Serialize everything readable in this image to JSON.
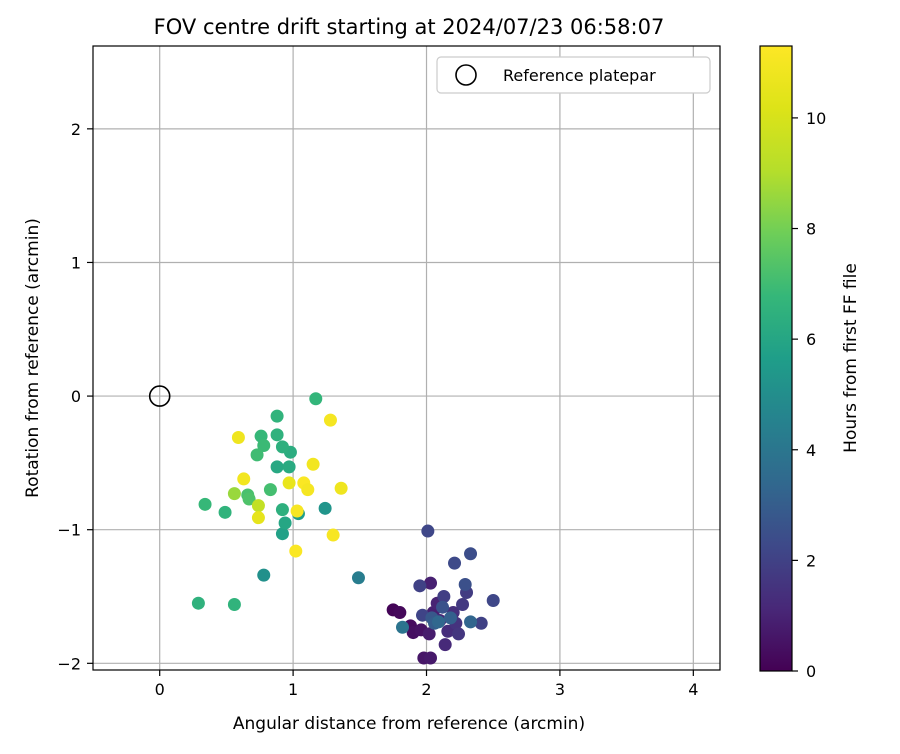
{
  "chart_data": {
    "type": "scatter",
    "title": "FOV centre drift starting at 2024/07/23 06:58:07",
    "xlabel": "Angular distance from reference (arcmin)",
    "ylabel": "Rotation from reference (arcmin)",
    "xlim": [
      -0.5,
      4.2
    ],
    "ylim": [
      -2.05,
      2.62
    ],
    "xticks": [
      0,
      1,
      2,
      3,
      4
    ],
    "xtick_labels": [
      "0",
      "1",
      "2",
      "3",
      "4"
    ],
    "yticks": [
      -2,
      -1,
      0,
      1,
      2
    ],
    "ytick_labels": [
      "−2",
      "−1",
      "0",
      "1",
      "2"
    ],
    "grid": true,
    "legend": {
      "placement": "top-right",
      "entries": [
        "Reference platepar"
      ]
    },
    "reference_point": {
      "x": 0,
      "y": 0
    },
    "colorbar": {
      "label": "Hours from first FF file",
      "colormap": "viridis",
      "range": [
        0,
        11.3
      ],
      "ticks": [
        0,
        2,
        4,
        6,
        8,
        10
      ],
      "tick_labels": [
        "0",
        "2",
        "4",
        "6",
        "8",
        "10"
      ]
    },
    "points": [
      {
        "x": 1.75,
        "y": -1.6,
        "h": 0.1
      },
      {
        "x": 1.8,
        "y": -1.62,
        "h": 0.2
      },
      {
        "x": 1.88,
        "y": -1.72,
        "h": 0.3
      },
      {
        "x": 1.9,
        "y": -1.77,
        "h": 0.4
      },
      {
        "x": 1.96,
        "y": -1.75,
        "h": 0.5
      },
      {
        "x": 1.98,
        "y": -1.96,
        "h": 0.6
      },
      {
        "x": 2.03,
        "y": -1.96,
        "h": 0.7
      },
      {
        "x": 2.02,
        "y": -1.78,
        "h": 0.8
      },
      {
        "x": 2.05,
        "y": -1.62,
        "h": 0.9
      },
      {
        "x": 2.08,
        "y": -1.55,
        "h": 1.0
      },
      {
        "x": 2.1,
        "y": -1.68,
        "h": 1.1
      },
      {
        "x": 2.14,
        "y": -1.86,
        "h": 1.2
      },
      {
        "x": 2.16,
        "y": -1.76,
        "h": 1.3
      },
      {
        "x": 2.03,
        "y": -1.4,
        "h": 0.9
      },
      {
        "x": 2.2,
        "y": -1.62,
        "h": 1.4
      },
      {
        "x": 2.22,
        "y": -1.7,
        "h": 1.5
      },
      {
        "x": 2.24,
        "y": -1.78,
        "h": 1.6
      },
      {
        "x": 2.27,
        "y": -1.56,
        "h": 1.7
      },
      {
        "x": 2.3,
        "y": -1.47,
        "h": 1.8
      },
      {
        "x": 2.13,
        "y": -1.5,
        "h": 1.9
      },
      {
        "x": 1.95,
        "y": -1.42,
        "h": 2.0
      },
      {
        "x": 1.97,
        "y": -1.64,
        "h": 2.1
      },
      {
        "x": 2.01,
        "y": -1.01,
        "h": 2.2
      },
      {
        "x": 2.21,
        "y": -1.25,
        "h": 2.3
      },
      {
        "x": 2.33,
        "y": -1.18,
        "h": 2.4
      },
      {
        "x": 2.29,
        "y": -1.41,
        "h": 2.5
      },
      {
        "x": 2.5,
        "y": -1.53,
        "h": 2.2
      },
      {
        "x": 2.41,
        "y": -1.7,
        "h": 2.0
      },
      {
        "x": 2.12,
        "y": -1.58,
        "h": 2.6
      },
      {
        "x": 2.04,
        "y": -1.66,
        "h": 2.8
      },
      {
        "x": 2.06,
        "y": -1.7,
        "h": 3.0
      },
      {
        "x": 2.18,
        "y": -1.66,
        "h": 3.1
      },
      {
        "x": 2.33,
        "y": -1.69,
        "h": 3.3
      },
      {
        "x": 2.09,
        "y": -1.69,
        "h": 3.4
      },
      {
        "x": 1.82,
        "y": -1.73,
        "h": 3.9
      },
      {
        "x": 1.49,
        "y": -1.36,
        "h": 4.3
      },
      {
        "x": 0.78,
        "y": -1.34,
        "h": 5.1
      },
      {
        "x": 1.24,
        "y": -0.84,
        "h": 5.3
      },
      {
        "x": 1.04,
        "y": -0.88,
        "h": 5.6
      },
      {
        "x": 0.92,
        "y": -1.03,
        "h": 5.8
      },
      {
        "x": 0.94,
        "y": -0.95,
        "h": 6.0
      },
      {
        "x": 0.88,
        "y": -0.53,
        "h": 6.1
      },
      {
        "x": 0.97,
        "y": -0.53,
        "h": 6.2
      },
      {
        "x": 0.98,
        "y": -0.42,
        "h": 6.3
      },
      {
        "x": 0.92,
        "y": -0.38,
        "h": 6.4
      },
      {
        "x": 0.88,
        "y": -0.29,
        "h": 6.5
      },
      {
        "x": 0.88,
        "y": -0.15,
        "h": 6.6
      },
      {
        "x": 1.17,
        "y": -0.02,
        "h": 6.7
      },
      {
        "x": 0.76,
        "y": -0.3,
        "h": 6.8
      },
      {
        "x": 0.78,
        "y": -0.37,
        "h": 6.9
      },
      {
        "x": 0.73,
        "y": -0.44,
        "h": 7.0
      },
      {
        "x": 0.83,
        "y": -0.7,
        "h": 7.1
      },
      {
        "x": 0.66,
        "y": -0.74,
        "h": 7.2
      },
      {
        "x": 0.67,
        "y": -0.77,
        "h": 7.3
      },
      {
        "x": 0.92,
        "y": -0.85,
        "h": 6.4
      },
      {
        "x": 0.34,
        "y": -0.81,
        "h": 6.8
      },
      {
        "x": 0.49,
        "y": -0.87,
        "h": 6.6
      },
      {
        "x": 0.29,
        "y": -1.55,
        "h": 6.5
      },
      {
        "x": 0.56,
        "y": -1.56,
        "h": 6.6
      },
      {
        "x": 0.56,
        "y": -0.73,
        "h": 8.6
      },
      {
        "x": 0.74,
        "y": -0.82,
        "h": 9.4
      },
      {
        "x": 0.74,
        "y": -0.91,
        "h": 10.5
      },
      {
        "x": 0.59,
        "y": -0.31,
        "h": 10.8
      },
      {
        "x": 0.63,
        "y": -0.62,
        "h": 10.9
      },
      {
        "x": 0.97,
        "y": -0.65,
        "h": 10.6
      },
      {
        "x": 1.03,
        "y": -0.86,
        "h": 11.1
      },
      {
        "x": 1.08,
        "y": -0.65,
        "h": 11.2
      },
      {
        "x": 1.11,
        "y": -0.7,
        "h": 11.0
      },
      {
        "x": 1.15,
        "y": -0.51,
        "h": 10.9
      },
      {
        "x": 1.28,
        "y": -0.18,
        "h": 11.0
      },
      {
        "x": 1.36,
        "y": -0.69,
        "h": 10.8
      },
      {
        "x": 1.3,
        "y": -1.04,
        "h": 11.1
      },
      {
        "x": 1.02,
        "y": -1.16,
        "h": 11.2
      }
    ]
  }
}
